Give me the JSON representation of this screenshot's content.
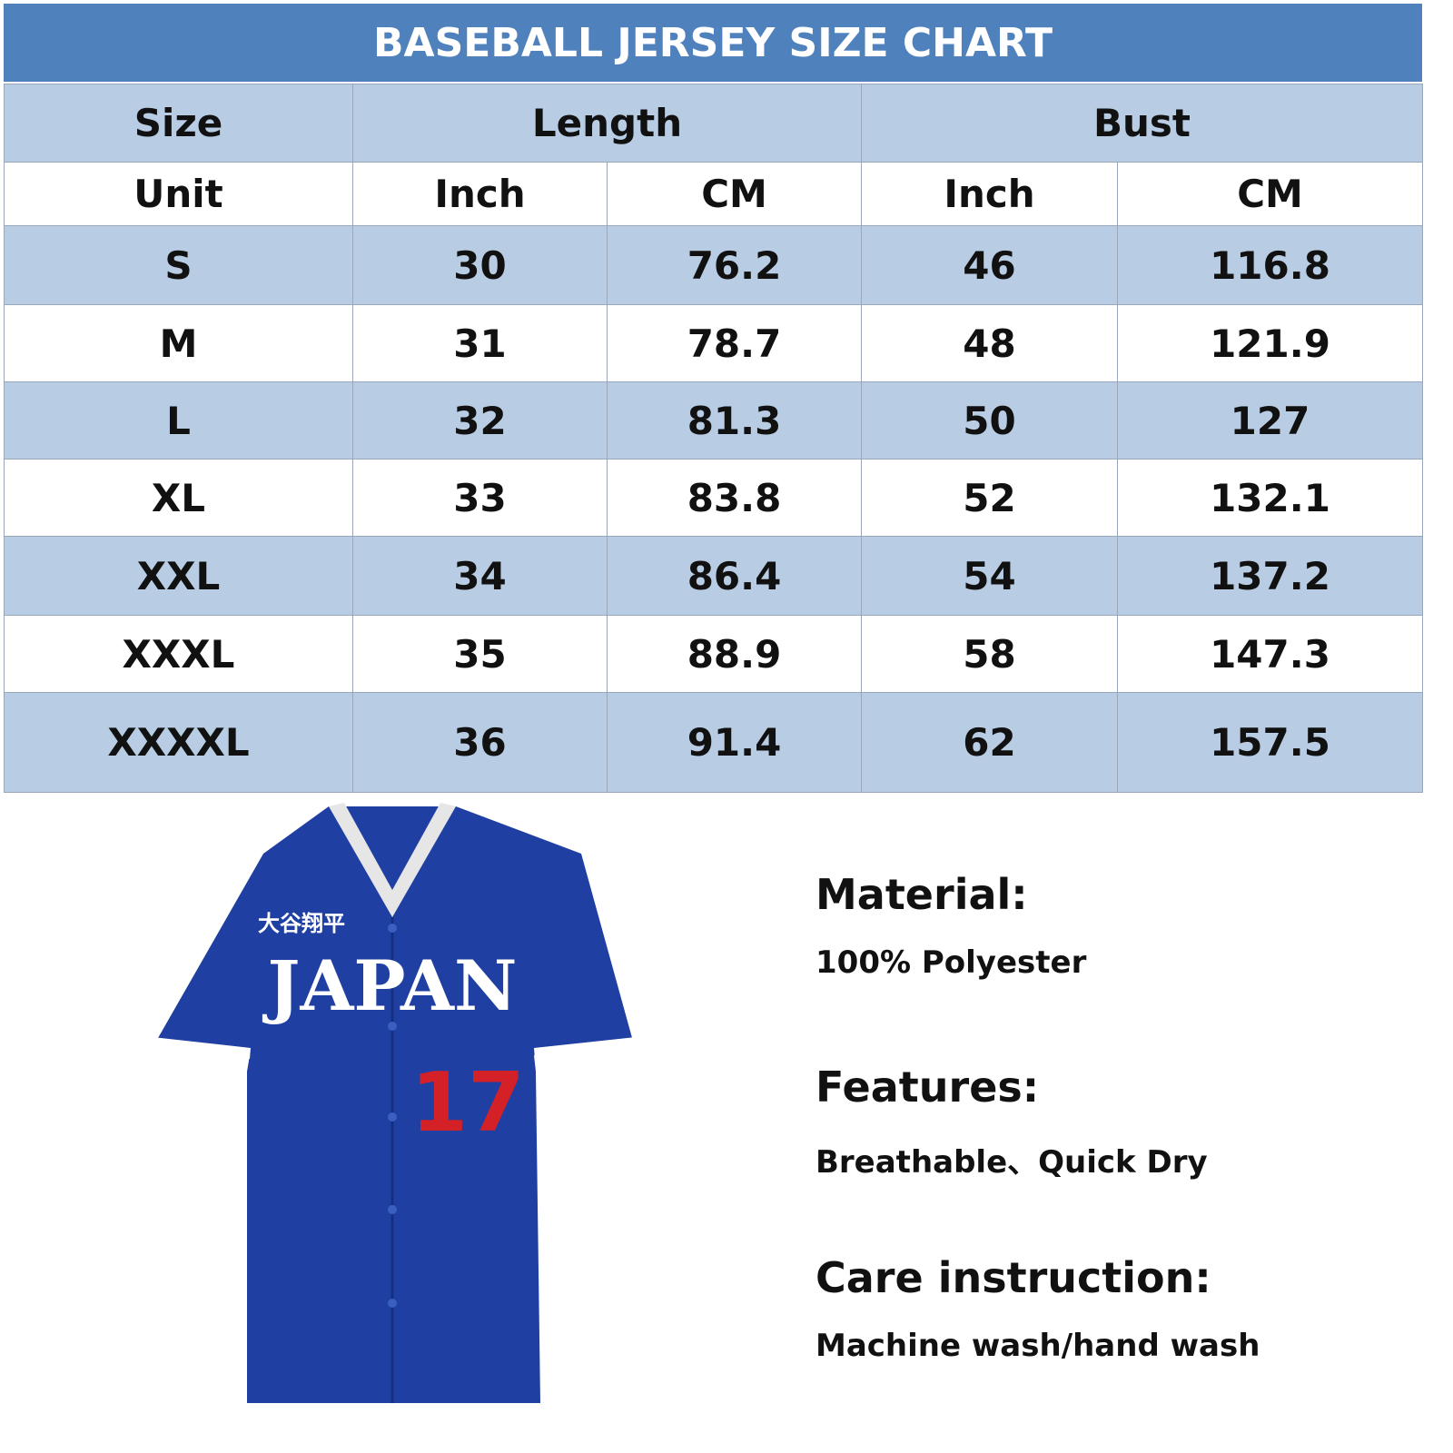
{
  "table": {
    "title": "BASEBALL JERSEY SIZE CHART",
    "header": [
      "Size",
      "Length",
      "Bust"
    ],
    "units": [
      "Unit",
      "Inch",
      "CM",
      "Inch",
      "CM"
    ],
    "rows": [
      [
        "S",
        "30",
        "76.2",
        "46",
        "116.8"
      ],
      [
        "M",
        "31",
        "78.7",
        "48",
        "121.9"
      ],
      [
        "L",
        "32",
        "81.3",
        "50",
        "127"
      ],
      [
        "XL",
        "33",
        "83.8",
        "52",
        "132.1"
      ],
      [
        "XXL",
        "34",
        "86.4",
        "54",
        "137.2"
      ],
      [
        "XXXL",
        "35",
        "88.9",
        "58",
        "147.3"
      ],
      [
        "XXXXL",
        "36",
        "91.4",
        "62",
        "157.5"
      ]
    ]
  },
  "jersey": {
    "name": "大谷翔平",
    "team": "JAPAN",
    "number": "17"
  },
  "info": [
    {
      "heading": "Material:",
      "text": "100% Polyester"
    },
    {
      "heading": "Features:",
      "text": "Breathable、Quick Dry"
    },
    {
      "heading": "Care instruction:",
      "text": "Machine wash/hand wash"
    }
  ]
}
